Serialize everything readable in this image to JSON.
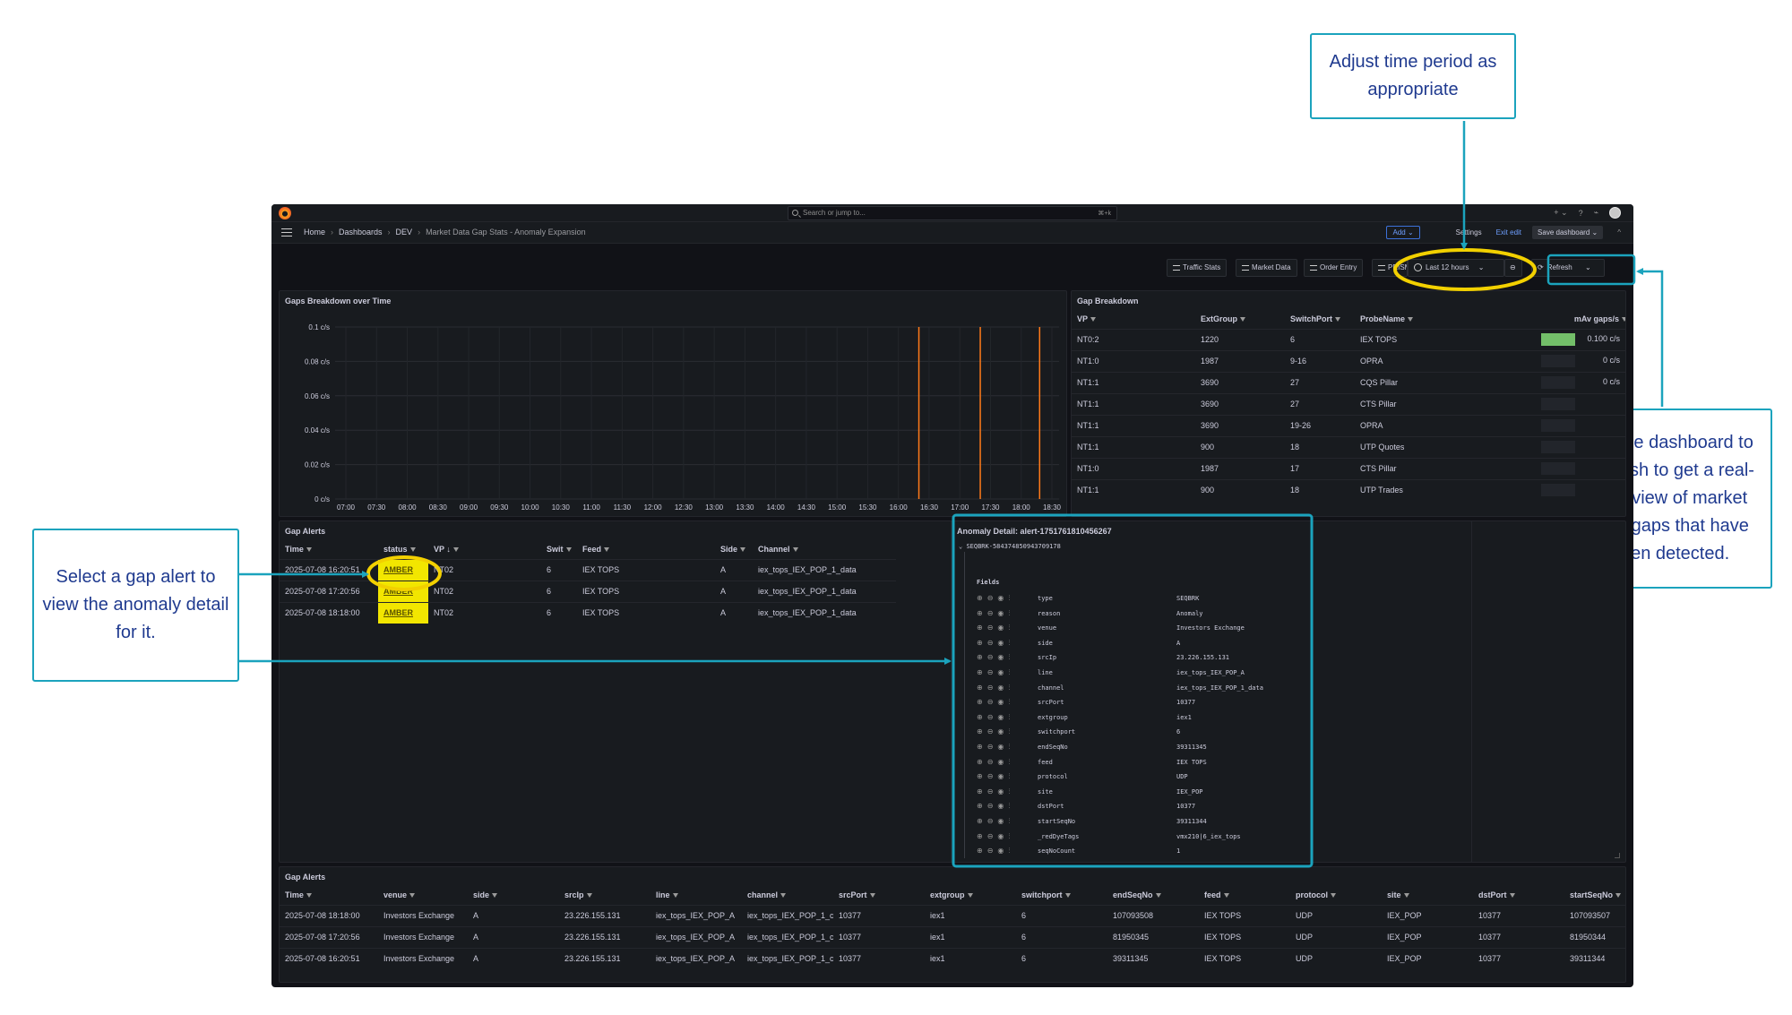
{
  "callouts": {
    "time_period": "Adjust time period as appropriate",
    "refresh": "Set the dashboard to Refresh to get a real-time view of market data gaps that have been detected.",
    "select_alert": "Select a gap alert to view the anomaly detail for it."
  },
  "topbar": {
    "search_placeholder": "Search or jump to...",
    "shortcut": "⌘+k",
    "plus": "+ ⌄",
    "help": "?",
    "rss": "⌁"
  },
  "breadcrumb": [
    "Home",
    "Dashboards",
    "DEV",
    "Market Data Gap Stats - Anomaly Expansion"
  ],
  "nav_actions": {
    "add": "Add ⌄",
    "settings": "Settings",
    "exit_edit": "Exit edit",
    "save": "Save dashboard ⌄",
    "collapse": "^"
  },
  "controls": {
    "links": [
      "Traffic Stats",
      "Market Data",
      "Order Entry",
      "PRISM"
    ],
    "time_range": "Last 12 hours",
    "refresh": "Refresh"
  },
  "accent_colors": {
    "callout_border": "#1ba3bd",
    "callout_text": "#1f3a8f",
    "highlight_ring": "#f2d000",
    "amber": "#f2e600",
    "gauge_green": "#73bf69",
    "spike": "#ff7a1a"
  },
  "gaps_chart": {
    "title": "Gaps Breakdown over Time",
    "chart_data": {
      "type": "line",
      "title": "Gaps Breakdown over Time",
      "x_ticks": [
        "07:00",
        "07:30",
        "08:00",
        "08:30",
        "09:00",
        "09:30",
        "10:00",
        "10:30",
        "11:00",
        "11:30",
        "12:00",
        "12:30",
        "13:00",
        "13:30",
        "14:00",
        "14:30",
        "15:00",
        "15:30",
        "16:00",
        "16:30",
        "17:00",
        "17:30",
        "18:00",
        "18:30"
      ],
      "y_ticks": [
        "0 c/s",
        "0.02 c/s",
        "0.04 c/s",
        "0.06 c/s",
        "0.08 c/s",
        "0.1 c/s"
      ],
      "ylim": [
        0,
        0.1
      ],
      "series": [
        {
          "color": "#ff7a1a",
          "points": [
            {
              "x": "16:20",
              "y": 0.1
            },
            {
              "x": "17:20",
              "y": 0.1
            },
            {
              "x": "18:18",
              "y": 0.1
            }
          ]
        }
      ]
    }
  },
  "gap_breakdown": {
    "title": "Gap Breakdown",
    "columns": [
      "VP",
      "ExtGroup",
      "SwitchPort",
      "ProbeName",
      "mAv gaps/s"
    ],
    "rows": [
      {
        "vp": "NT0:2",
        "ext": "1220",
        "port": "6",
        "probe": "IEX TOPS",
        "rate": "0.100 c/s",
        "fill": 1.0
      },
      {
        "vp": "NT1:0",
        "ext": "1987",
        "port": "9-16",
        "probe": "OPRA",
        "rate": "0 c/s",
        "fill": 0
      },
      {
        "vp": "NT1:1",
        "ext": "3690",
        "port": "27",
        "probe": "CQS Pillar",
        "rate": "0 c/s",
        "fill": 0
      },
      {
        "vp": "NT1:1",
        "ext": "3690",
        "port": "27",
        "probe": "CTS Pillar",
        "rate": "",
        "fill": 0
      },
      {
        "vp": "NT1:1",
        "ext": "3690",
        "port": "19-26",
        "probe": "OPRA",
        "rate": "",
        "fill": 0
      },
      {
        "vp": "NT1:1",
        "ext": "900",
        "port": "18",
        "probe": "UTP Quotes",
        "rate": "",
        "fill": 0
      },
      {
        "vp": "NT1:0",
        "ext": "1987",
        "port": "17",
        "probe": "CTS Pillar",
        "rate": "",
        "fill": 0
      },
      {
        "vp": "NT1:1",
        "ext": "900",
        "port": "18",
        "probe": "UTP Trades",
        "rate": "",
        "fill": 0
      }
    ]
  },
  "gap_alerts": {
    "title": "Gap Alerts",
    "columns": [
      "Time",
      "status",
      "VP ↓",
      "Swit",
      "Feed",
      "Side",
      "Channel"
    ],
    "rows": [
      {
        "time": "2025-07-08 16:20:51",
        "status": "AMBER",
        "vp": "NT02",
        "swit": "6",
        "feed": "IEX TOPS",
        "side": "A",
        "channel": "iex_tops_IEX_POP_1_data"
      },
      {
        "time": "2025-07-08 17:20:56",
        "status": "AMBER",
        "vp": "NT02",
        "swit": "6",
        "feed": "IEX TOPS",
        "side": "A",
        "channel": "iex_tops_IEX_POP_1_data"
      },
      {
        "time": "2025-07-08 18:18:00",
        "status": "AMBER",
        "vp": "NT02",
        "swit": "6",
        "feed": "IEX TOPS",
        "side": "A",
        "channel": "iex_tops_IEX_POP_1_data"
      }
    ]
  },
  "anomaly": {
    "title": "Anomaly Detail: alert-1751761810456267",
    "group": "SEQBRK-584374850943709178",
    "fields_label": "Fields",
    "fields": [
      {
        "k": "type",
        "v": "SEQBRK"
      },
      {
        "k": "reason",
        "v": "Anomaly"
      },
      {
        "k": "venue",
        "v": "Investors Exchange"
      },
      {
        "k": "side",
        "v": "A"
      },
      {
        "k": "srcIp",
        "v": "23.226.155.131"
      },
      {
        "k": "line",
        "v": "iex_tops_IEX_POP_A"
      },
      {
        "k": "channel",
        "v": "iex_tops_IEX_POP_1_data"
      },
      {
        "k": "srcPort",
        "v": "10377"
      },
      {
        "k": "extgroup",
        "v": "iex1"
      },
      {
        "k": "switchport",
        "v": "6"
      },
      {
        "k": "endSeqNo",
        "v": "39311345"
      },
      {
        "k": "feed",
        "v": "IEX TOPS"
      },
      {
        "k": "protocol",
        "v": "UDP"
      },
      {
        "k": "site",
        "v": "IEX_POP"
      },
      {
        "k": "dstPort",
        "v": "10377"
      },
      {
        "k": "startSeqNo",
        "v": "39311344"
      },
      {
        "k": "_redDyeTags",
        "v": "vmx210|6_iex_tops"
      },
      {
        "k": "seqNoCount",
        "v": "1"
      }
    ]
  },
  "gap_alerts_detail": {
    "title": "Gap Alerts",
    "columns": [
      "Time",
      "venue",
      "side",
      "srcIp",
      "line",
      "channel",
      "srcPort",
      "extgroup",
      "switchport",
      "endSeqNo",
      "feed",
      "protocol",
      "site",
      "dstPort",
      "startSeqNo"
    ],
    "rows": [
      [
        "2025-07-08 18:18:00",
        "Investors Exchange",
        "A",
        "23.226.155.131",
        "iex_tops_IEX_POP_A",
        "iex_tops_IEX_POP_1_c",
        "10377",
        "iex1",
        "6",
        "107093508",
        "IEX TOPS",
        "UDP",
        "IEX_POP",
        "10377",
        "107093507"
      ],
      [
        "2025-07-08 17:20:56",
        "Investors Exchange",
        "A",
        "23.226.155.131",
        "iex_tops_IEX_POP_A",
        "iex_tops_IEX_POP_1_c",
        "10377",
        "iex1",
        "6",
        "81950345",
        "IEX TOPS",
        "UDP",
        "IEX_POP",
        "10377",
        "81950344"
      ],
      [
        "2025-07-08 16:20:51",
        "Investors Exchange",
        "A",
        "23.226.155.131",
        "iex_tops_IEX_POP_A",
        "iex_tops_IEX_POP_1_c",
        "10377",
        "iex1",
        "6",
        "39311345",
        "IEX TOPS",
        "UDP",
        "IEX_POP",
        "10377",
        "39311344"
      ]
    ]
  }
}
